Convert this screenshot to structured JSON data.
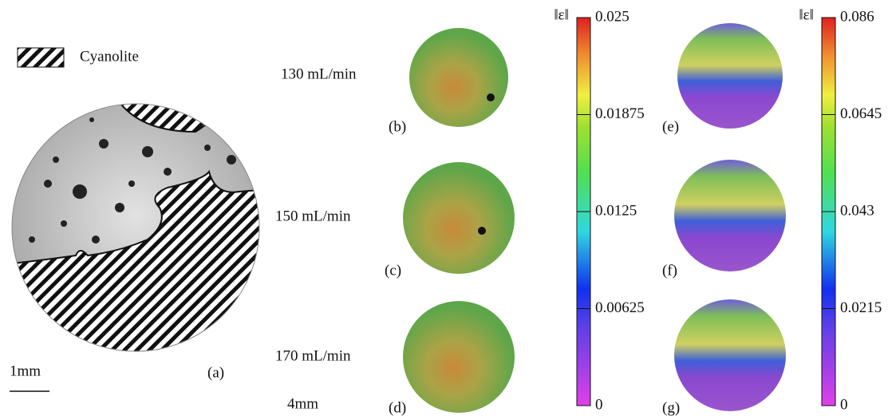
{
  "legend": {
    "label": "Cyanolite"
  },
  "scale_bar": "1mm",
  "scale_note": "4mm",
  "flow_rates": [
    "130 mL/min",
    "150 mL/min",
    "170 mL/min"
  ],
  "panel_labels": [
    "(a)",
    "(b)",
    "(c)",
    "(d)",
    "(e)",
    "(f)",
    "(g)"
  ],
  "colorbars": [
    {
      "label": "‖ε‖",
      "lim": [
        0,
        0.025
      ],
      "ticks": [
        0,
        0.00625,
        0.0125,
        0.01875,
        0.025
      ]
    },
    {
      "label": "‖ε‖",
      "lim": [
        0,
        0.086
      ],
      "ticks": [
        0,
        0.0215,
        0.043,
        0.0645,
        0.086
      ]
    }
  ]
}
